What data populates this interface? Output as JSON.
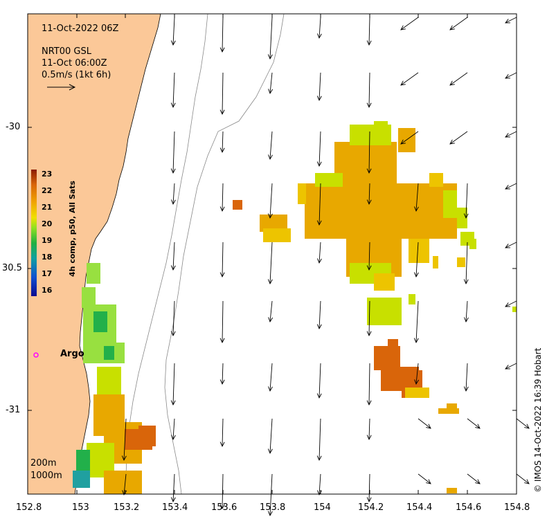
{
  "header": {
    "date": "11-Oct-2022 06Z",
    "current_source": "NRT00 GSL",
    "current_time": "11-Oct 06:00Z",
    "vector_scale": "0.5m/s (1kt 6h)"
  },
  "colorbar": {
    "title": "4h comp, p50, All Sats",
    "ticks": [
      "23",
      "22",
      "21",
      "20",
      "19",
      "18",
      "17",
      "16"
    ],
    "min": 16,
    "max": 23
  },
  "axes": {
    "x_ticks": [
      "152.8",
      "153",
      "153.2",
      "153.4",
      "153.6",
      "153.8",
      "154",
      "154.2",
      "154.4",
      "154.6",
      "154.8"
    ],
    "y_ticks": [
      "-30",
      "30.5",
      "-31"
    ],
    "xlim": [
      152.8,
      154.8
    ],
    "ylim": [
      -31.3,
      -29.6
    ]
  },
  "argo": {
    "label": "Argo",
    "lon": 152.83,
    "lat": -30.8
  },
  "isobaths": {
    "label_200": "200m",
    "label_1000": "1000m"
  },
  "credit": "© IMOS 14-Oct-2022 16:39 Hobart",
  "colors": {
    "land": "#FBC898",
    "argo": "#FF00FF",
    "sst_warm": "#D9650A",
    "sst_mid": "#F0C000",
    "sst_cool": "#22B04A"
  }
}
